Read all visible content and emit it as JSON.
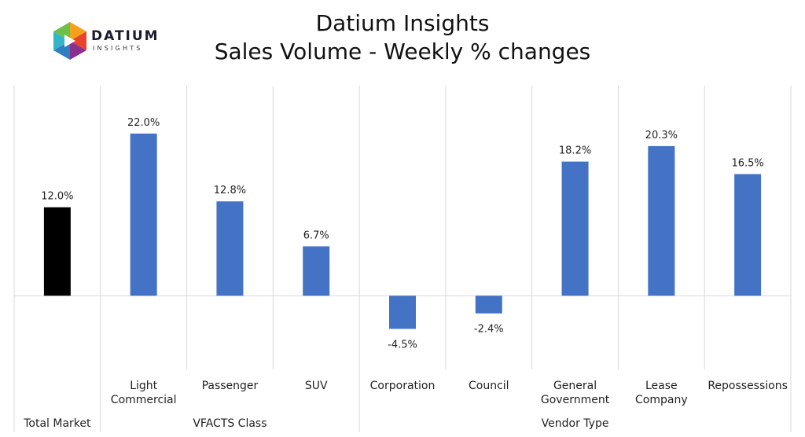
{
  "logo": {
    "word": "DATIUM",
    "sub": "INSIGHTS",
    "colors": [
      "#f4a21c",
      "#e8432c",
      "#8b2f8f",
      "#2d7fc1",
      "#35b5c9",
      "#6cc04a"
    ]
  },
  "title": {
    "line1": "Datium Insights",
    "line2": "Sales Volume - Weekly % changes"
  },
  "chart_data": {
    "type": "bar",
    "categories": [
      [
        "Total Market"
      ],
      [
        "Light",
        "Commercial"
      ],
      [
        "Passenger"
      ],
      [
        "SUV"
      ],
      [
        "Corporation"
      ],
      [
        "Council"
      ],
      [
        "General",
        "Government"
      ],
      [
        "Lease",
        "Company"
      ],
      [
        "Repossessions"
      ]
    ],
    "values": [
      12.0,
      22.0,
      12.8,
      6.7,
      -4.5,
      -2.4,
      18.2,
      20.3,
      16.5
    ],
    "value_labels": [
      "12.0%",
      "22.0%",
      "12.8%",
      "6.7%",
      "-4.5%",
      "-2.4%",
      "18.2%",
      "20.3%",
      "16.5%"
    ],
    "bar_colors": [
      "#000000",
      "#4472c4",
      "#4472c4",
      "#4472c4",
      "#4472c4",
      "#4472c4",
      "#4472c4",
      "#4472c4",
      "#4472c4"
    ],
    "groups": [
      {
        "label": "Total Market",
        "start": 0,
        "end": 0
      },
      {
        "label": "VFACTS Class",
        "start": 1,
        "end": 3
      },
      {
        "label": "Vendor Type",
        "start": 4,
        "end": 8
      }
    ],
    "ylim": [
      -10.0,
      28.5
    ],
    "grid": false,
    "xlabel": "",
    "ylabel": ""
  }
}
